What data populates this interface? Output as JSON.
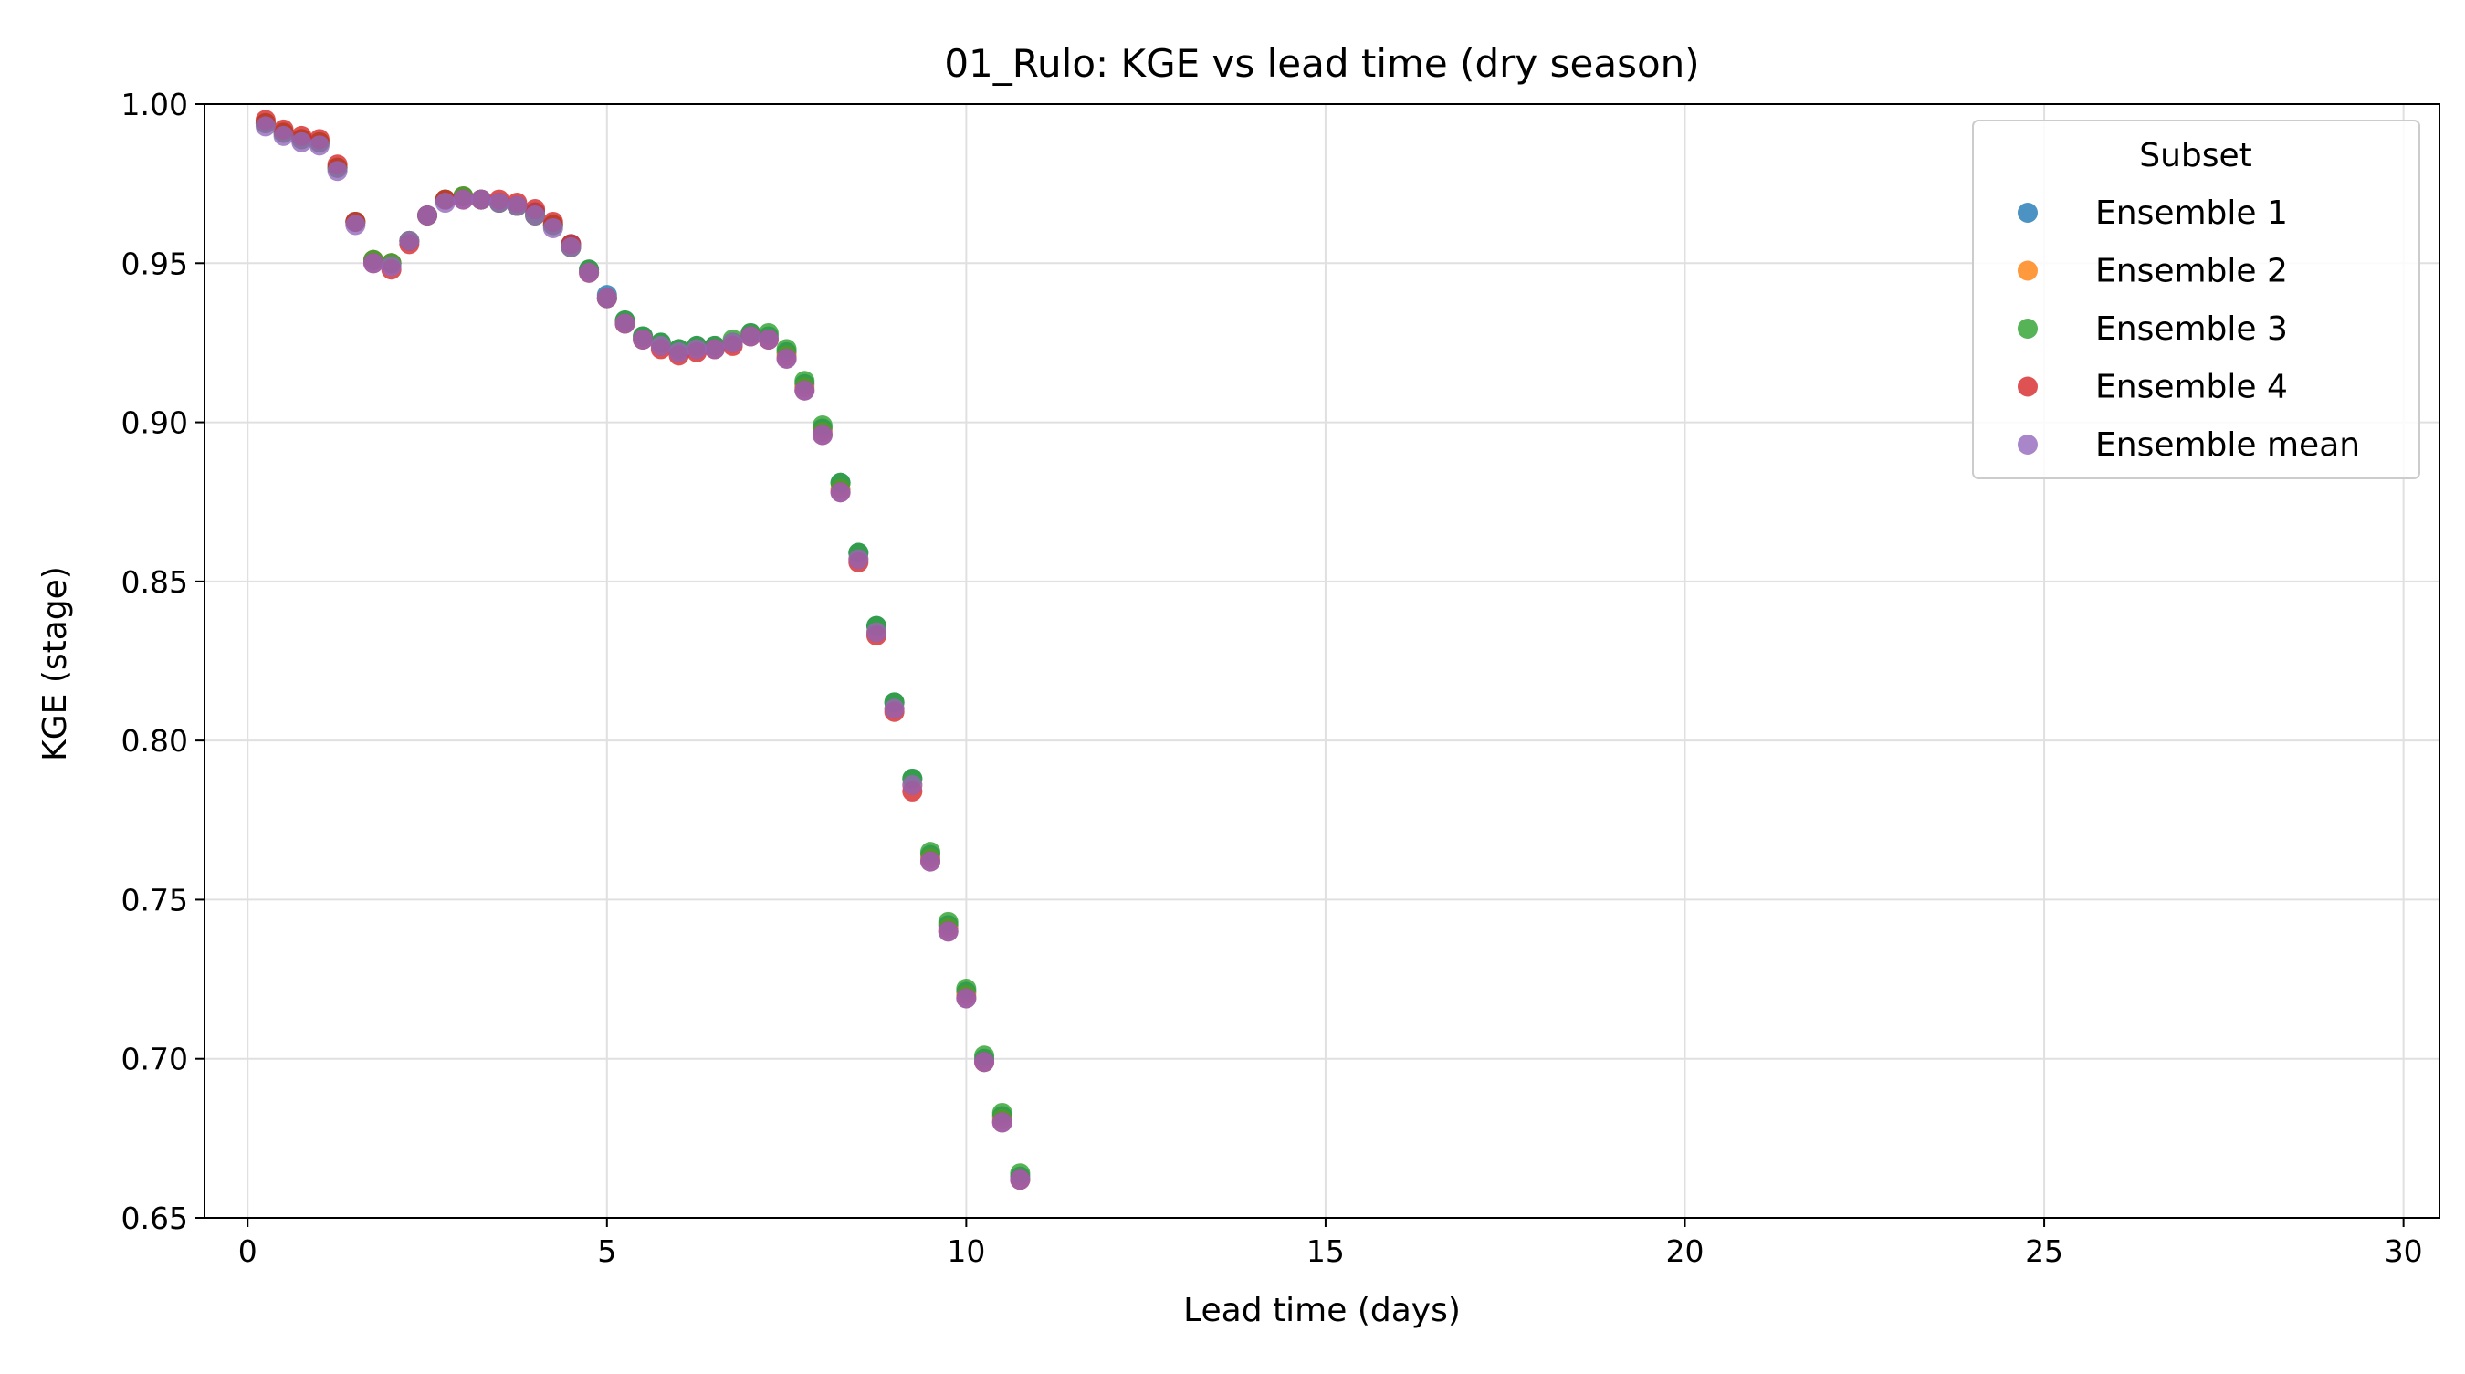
{
  "chart_data": {
    "type": "scatter",
    "title": "01_Rulo: KGE vs lead time (dry season)",
    "xlabel": "Lead time (days)",
    "ylabel": "KGE (stage)",
    "xlim": [
      -0.6,
      30.5
    ],
    "ylim": [
      0.65,
      1.0
    ],
    "xticks": [
      0,
      5,
      10,
      15,
      20,
      25,
      30
    ],
    "yticks": [
      0.65,
      0.7,
      0.75,
      0.8,
      0.85,
      0.9,
      0.95,
      1.0
    ],
    "xtick_labels": [
      "0",
      "5",
      "10",
      "15",
      "20",
      "25",
      "30"
    ],
    "ytick_labels": [
      "0.65",
      "0.70",
      "0.75",
      "0.80",
      "0.85",
      "0.90",
      "0.95",
      "1.00"
    ],
    "grid": true,
    "legend": {
      "title": "Subset",
      "position": "top-right"
    },
    "x": [
      0.25,
      0.5,
      0.75,
      1.0,
      1.25,
      1.5,
      1.75,
      2.0,
      2.25,
      2.5,
      2.75,
      3.0,
      3.25,
      3.5,
      3.75,
      4.0,
      4.25,
      4.5,
      4.75,
      5.0,
      5.25,
      5.5,
      5.75,
      6.0,
      6.25,
      6.5,
      6.75,
      7.0,
      7.25,
      7.5,
      7.75,
      8.0,
      8.25,
      8.5,
      8.75,
      9.0,
      9.25,
      9.5,
      9.75,
      10.0,
      10.25,
      10.5,
      10.75
    ],
    "series": [
      {
        "name": "Ensemble 1",
        "color": "#1f77b4",
        "values": [
          0.994,
          0.991,
          0.989,
          0.988,
          0.98,
          0.963,
          0.951,
          0.95,
          0.957,
          0.965,
          0.97,
          0.971,
          0.97,
          0.969,
          0.968,
          0.966,
          0.962,
          0.956,
          0.948,
          0.94,
          0.932,
          0.927,
          0.925,
          0.923,
          0.924,
          0.924,
          0.925,
          0.928,
          0.927,
          0.922,
          0.912,
          0.898,
          0.881,
          0.859,
          0.836,
          0.812,
          0.788,
          0.764,
          0.742,
          0.721,
          0.7,
          0.682,
          0.663
        ]
      },
      {
        "name": "Ensemble 2",
        "color": "#ff7f0e",
        "values": [
          0.994,
          0.991,
          0.989,
          0.988,
          0.98,
          0.963,
          0.951,
          0.95,
          0.957,
          0.965,
          0.97,
          0.971,
          0.97,
          0.969,
          0.968,
          0.965,
          0.962,
          0.955,
          0.947,
          0.939,
          0.931,
          0.926,
          0.924,
          0.922,
          0.923,
          0.923,
          0.925,
          0.927,
          0.926,
          0.921,
          0.911,
          0.897,
          0.879,
          0.857,
          0.834,
          0.81,
          0.786,
          0.763,
          0.741,
          0.72,
          0.699,
          0.681,
          0.662
        ]
      },
      {
        "name": "Ensemble 3",
        "color": "#2ca02c",
        "values": [
          0.994,
          0.991,
          0.989,
          0.988,
          0.98,
          0.963,
          0.951,
          0.95,
          0.957,
          0.965,
          0.97,
          0.971,
          0.97,
          0.969,
          0.968,
          0.965,
          0.962,
          0.955,
          0.948,
          0.939,
          0.932,
          0.927,
          0.925,
          0.923,
          0.924,
          0.924,
          0.926,
          0.928,
          0.928,
          0.923,
          0.913,
          0.899,
          0.881,
          0.859,
          0.836,
          0.812,
          0.788,
          0.765,
          0.743,
          0.722,
          0.701,
          0.683,
          0.664
        ]
      },
      {
        "name": "Ensemble 4",
        "color": "#d62728",
        "values": [
          0.995,
          0.992,
          0.99,
          0.989,
          0.981,
          0.963,
          0.95,
          0.948,
          0.956,
          0.965,
          0.97,
          0.97,
          0.97,
          0.97,
          0.969,
          0.967,
          0.963,
          0.956,
          0.947,
          0.939,
          0.931,
          0.926,
          0.923,
          0.921,
          0.922,
          0.923,
          0.924,
          0.927,
          0.926,
          0.92,
          0.91,
          0.896,
          0.878,
          0.856,
          0.833,
          0.809,
          0.784,
          0.762,
          0.74,
          0.719,
          0.699,
          0.68,
          0.662
        ]
      },
      {
        "name": "Ensemble mean",
        "color": "#9467bd",
        "values": [
          0.993,
          0.99,
          0.988,
          0.987,
          0.979,
          0.962,
          0.95,
          0.949,
          0.957,
          0.965,
          0.969,
          0.97,
          0.97,
          0.969,
          0.968,
          0.965,
          0.961,
          0.955,
          0.947,
          0.939,
          0.931,
          0.926,
          0.924,
          0.922,
          0.923,
          0.923,
          0.925,
          0.927,
          0.926,
          0.92,
          0.91,
          0.896,
          0.878,
          0.857,
          0.834,
          0.81,
          0.786,
          0.762,
          0.74,
          0.719,
          0.699,
          0.68,
          0.662
        ]
      }
    ]
  }
}
